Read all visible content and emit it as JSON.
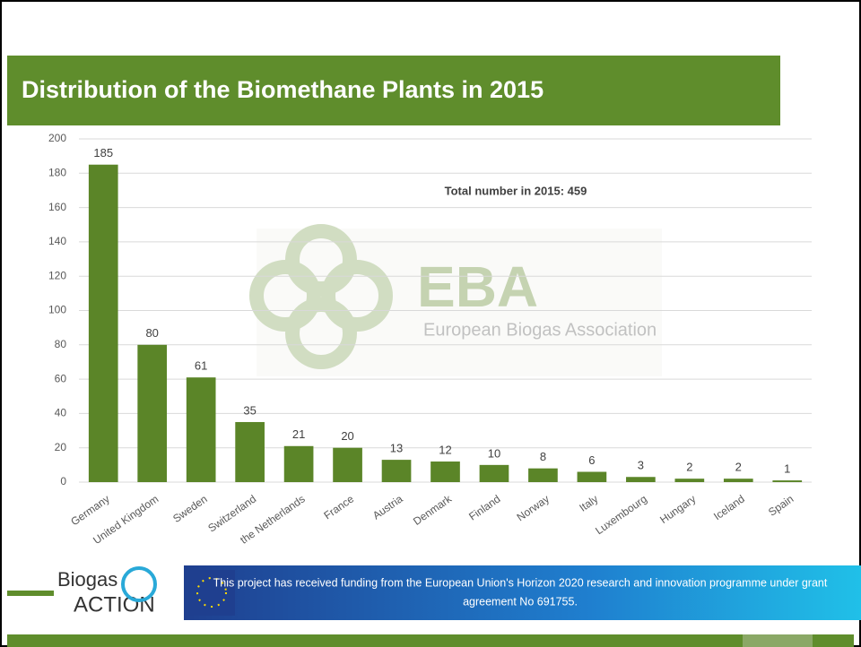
{
  "chart_data": {
    "type": "bar",
    "title": "Distribution of the Biomethane Plants in 2015",
    "annotation": "Total number in 2015: 459",
    "categories": [
      "Germany",
      "United Kingdom",
      "Sweden",
      "Switzerland",
      "the Netherlands",
      "France",
      "Austria",
      "Denmark",
      "Finland",
      "Norway",
      "Italy",
      "Luxembourg",
      "Hungary",
      "Iceland",
      "Spain"
    ],
    "values": [
      185,
      80,
      61,
      35,
      21,
      20,
      13,
      12,
      10,
      8,
      6,
      3,
      2,
      2,
      1
    ],
    "color": "#5b8528",
    "ylim": [
      0,
      200
    ],
    "yticks": [
      0,
      20,
      40,
      60,
      80,
      100,
      120,
      140,
      160,
      180,
      200
    ],
    "grid": true
  },
  "watermark": {
    "logo": "EBA",
    "text": "European Biogas Association"
  },
  "footer": {
    "logo_top": "Biogas",
    "logo_bottom": "ACTION",
    "funding": [
      "This project has received funding from the European Union's Horizon 2020 research and innovation programme under grant",
      "agreement No 691755."
    ]
  }
}
